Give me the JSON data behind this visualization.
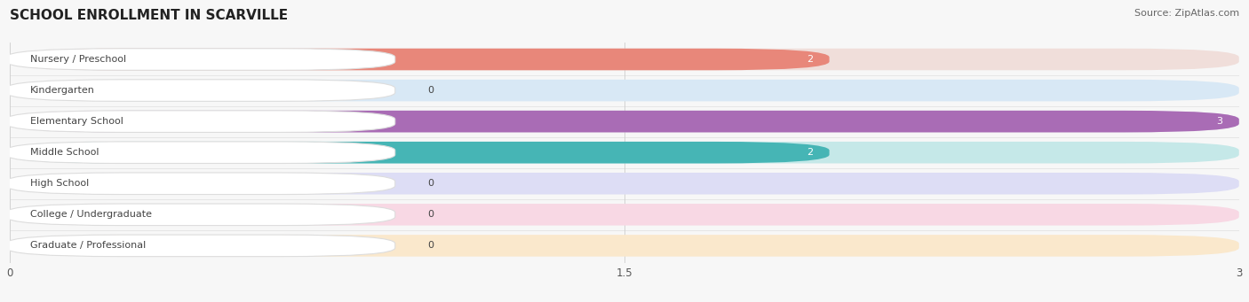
{
  "title": "SCHOOL ENROLLMENT IN SCARVILLE",
  "source": "Source: ZipAtlas.com",
  "categories": [
    "Nursery / Preschool",
    "Kindergarten",
    "Elementary School",
    "Middle School",
    "High School",
    "College / Undergraduate",
    "Graduate / Professional"
  ],
  "values": [
    2,
    0,
    3,
    2,
    0,
    0,
    0
  ],
  "bar_colors": [
    "#E8877A",
    "#9BBCE0",
    "#A96CB5",
    "#46B5B5",
    "#A8ADDE",
    "#F088A8",
    "#F5C07A"
  ],
  "bar_bg_colors": [
    "#F0DEDA",
    "#D8E8F5",
    "#DDD0E8",
    "#C5E8E8",
    "#DDDDF5",
    "#F8D8E4",
    "#FAE8CC"
  ],
  "track_color": "#EBEBEB",
  "label_bg_color": "#FFFFFF",
  "label_border_color": "#DDDDDD",
  "xlim": [
    0,
    3
  ],
  "xticks": [
    0,
    1.5,
    3
  ],
  "background_color": "#F7F7F7",
  "row_sep_color": "#E0E0E0",
  "title_fontsize": 11,
  "source_fontsize": 8,
  "label_fontsize": 8,
  "value_fontsize": 8
}
